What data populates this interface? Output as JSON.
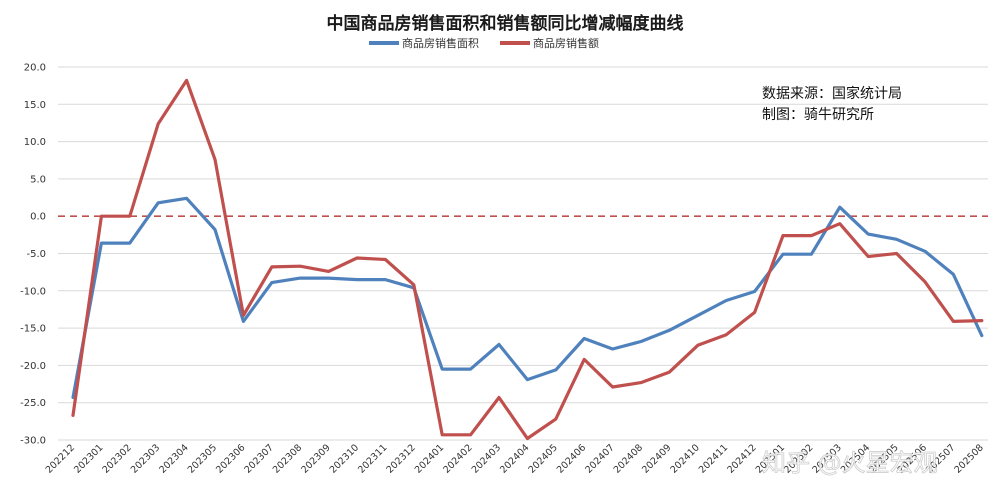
{
  "chart_data": {
    "type": "line",
    "title": "中国商品房销售面积和销售额同比增减幅度曲线",
    "source_lines": [
      "数据来源：国家统计局",
      "制图：骑牛研究所"
    ],
    "watermark": "知乎 @火星宏观",
    "ylim": [
      -30,
      20
    ],
    "yticks": [
      "20.0",
      "15.0",
      "10.0",
      "5.0",
      "0.0",
      "-5.0",
      "-10.0",
      "-15.0",
      "-20.0",
      "-25.0",
      "-30.0"
    ],
    "ytick_values": [
      20,
      15,
      10,
      5,
      0,
      -5,
      -10,
      -15,
      -20,
      -25,
      -30
    ],
    "reference_line": 0,
    "grid": "horizontal",
    "legend_position": "top-center",
    "categories": [
      "202212",
      "202301",
      "202302",
      "202303",
      "202304",
      "202305",
      "202306",
      "202307",
      "202308",
      "202309",
      "202310",
      "202311",
      "202312",
      "202401",
      "202402",
      "202403",
      "202404",
      "202405",
      "202406",
      "202407",
      "202408",
      "202409",
      "202410",
      "202411",
      "202412",
      "202501",
      "202502",
      "202503",
      "202504",
      "202505",
      "202506",
      "202507",
      "202508"
    ],
    "series": [
      {
        "name": "商品房销售面积",
        "color": "#4f81bd",
        "values": [
          -24.3,
          -3.6,
          -3.6,
          1.8,
          2.4,
          -1.8,
          -14.1,
          -8.9,
          -8.3,
          -8.3,
          -8.5,
          -8.5,
          -9.6,
          -20.5,
          -20.5,
          -17.2,
          -21.9,
          -20.6,
          -16.4,
          -17.8,
          -16.8,
          -15.3,
          -13.3,
          -11.3,
          -10.1,
          -5.1,
          -5.1,
          1.2,
          -2.4,
          -3.1,
          -4.7,
          -7.8,
          -16.0
        ]
      },
      {
        "name": "商品房销售额",
        "color": "#c0504d",
        "values": [
          -26.7,
          0.0,
          0.0,
          12.4,
          18.2,
          7.6,
          -13.3,
          -6.8,
          -6.7,
          -7.4,
          -5.6,
          -5.8,
          -9.2,
          -29.3,
          -29.3,
          -24.3,
          -29.8,
          -27.2,
          -19.2,
          -22.9,
          -22.3,
          -20.9,
          -17.3,
          -15.9,
          -12.9,
          -2.6,
          -2.6,
          -1.0,
          -5.4,
          -5.0,
          -8.8,
          -14.1,
          -14.0
        ]
      }
    ]
  }
}
